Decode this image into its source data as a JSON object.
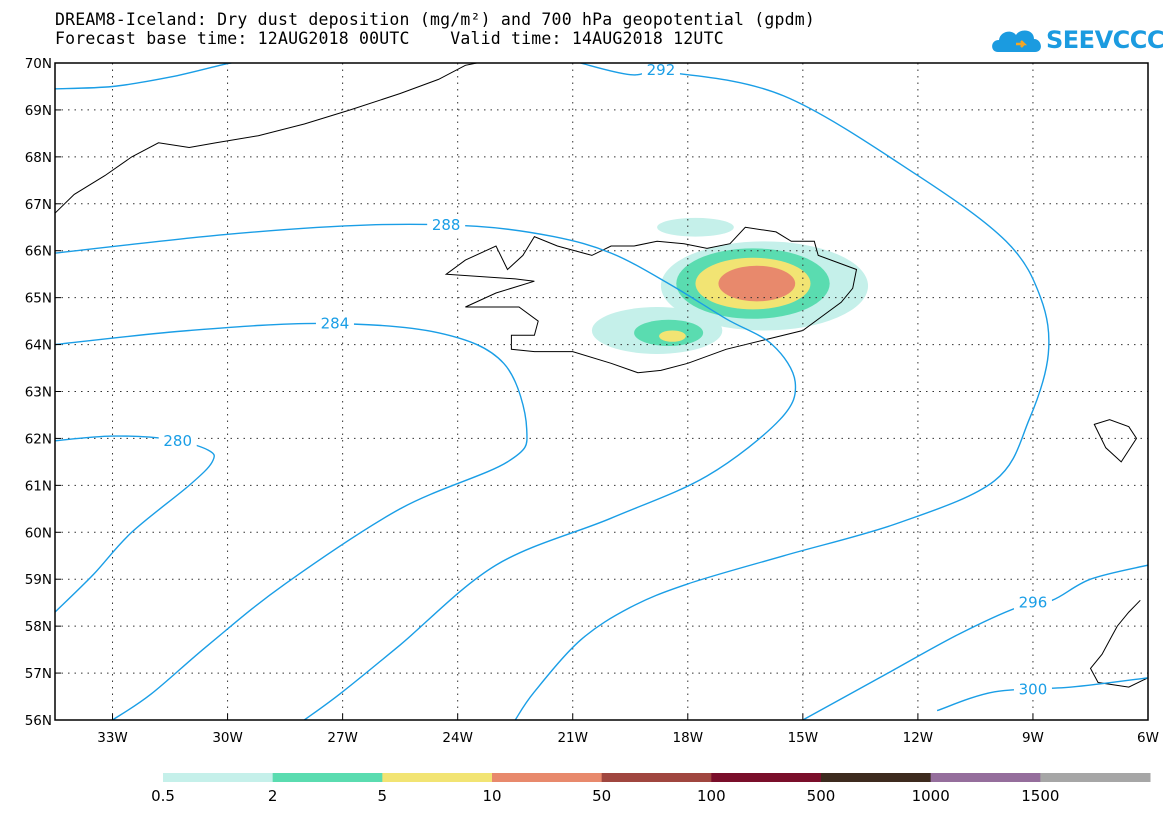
{
  "header": {
    "title_line1": "DREAM8-Iceland: Dry dust deposition (mg/m²) and 700 hPa geopotential (gpdm)",
    "title_line2": "Forecast base time: 12AUG2018 00UTC    Valid time: 14AUG2018 12UTC"
  },
  "logo": {
    "text": "SEEVCCC",
    "color": "#1b9be0"
  },
  "map": {
    "lon_range": [
      -34.5,
      -6
    ],
    "lat_range": [
      56,
      70
    ],
    "lon_ticks": [
      {
        "value": -33,
        "label": "33W"
      },
      {
        "value": -30,
        "label": "30W"
      },
      {
        "value": -27,
        "label": "27W"
      },
      {
        "value": -24,
        "label": "24W"
      },
      {
        "value": -21,
        "label": "21W"
      },
      {
        "value": -18,
        "label": "18W"
      },
      {
        "value": -15,
        "label": "15W"
      },
      {
        "value": -12,
        "label": "12W"
      },
      {
        "value": -9,
        "label": "9W"
      },
      {
        "value": -6,
        "label": "6W"
      }
    ],
    "lat_ticks": [
      {
        "value": 56,
        "label": "56N"
      },
      {
        "value": 57,
        "label": "57N"
      },
      {
        "value": 58,
        "label": "58N"
      },
      {
        "value": 59,
        "label": "59N"
      },
      {
        "value": 60,
        "label": "60N"
      },
      {
        "value": 61,
        "label": "61N"
      },
      {
        "value": 62,
        "label": "62N"
      },
      {
        "value": 63,
        "label": "63N"
      },
      {
        "value": 64,
        "label": "64N"
      },
      {
        "value": 65,
        "label": "65N"
      },
      {
        "value": 66,
        "label": "66N"
      },
      {
        "value": 67,
        "label": "67N"
      },
      {
        "value": 68,
        "label": "68N"
      },
      {
        "value": 69,
        "label": "69N"
      },
      {
        "value": 70,
        "label": "70N"
      }
    ],
    "grid": "dotted",
    "contour_color": "#1a9ee6",
    "contours": [
      {
        "value": 280,
        "label": "280",
        "label_at": [
          -31.3,
          61.95
        ],
        "points": [
          [
            -34.5,
            61.95
          ],
          [
            -33,
            62.05
          ],
          [
            -31.5,
            61.98
          ],
          [
            -30.5,
            61.75
          ],
          [
            -30.4,
            61.5
          ],
          [
            -31,
            61.0
          ],
          [
            -32.5,
            60.0
          ],
          [
            -33.5,
            59.1
          ],
          [
            -34.5,
            58.3
          ]
        ]
      },
      {
        "value": 284,
        "label": "284",
        "label_at": [
          -27.2,
          64.45
        ],
        "points": [
          [
            -34.5,
            64.0
          ],
          [
            -31,
            64.3
          ],
          [
            -27.5,
            64.45
          ],
          [
            -24.5,
            64.25
          ],
          [
            -22.8,
            63.6
          ],
          [
            -22.2,
            62.2
          ],
          [
            -22.7,
            61.5
          ],
          [
            -25.5,
            60.5
          ],
          [
            -28.5,
            58.9
          ],
          [
            -30.5,
            57.6
          ],
          [
            -32,
            56.55
          ],
          [
            -33,
            56.0
          ]
        ]
      },
      {
        "value": 288,
        "label": "288",
        "label_at": [
          -24.3,
          66.55
        ],
        "points": [
          [
            -34.5,
            65.95
          ],
          [
            -30,
            66.35
          ],
          [
            -26.3,
            66.55
          ],
          [
            -23.5,
            66.52
          ],
          [
            -21.5,
            66.3
          ],
          [
            -20,
            65.95
          ],
          [
            -18.5,
            65.3
          ],
          [
            -17,
            64.55
          ],
          [
            -15.8,
            64.0
          ],
          [
            -15.2,
            63.2
          ],
          [
            -15.6,
            62.4
          ],
          [
            -17.5,
            61.2
          ],
          [
            -20,
            60.3
          ],
          [
            -23,
            59.3
          ],
          [
            -25.5,
            57.6
          ],
          [
            -27,
            56.6
          ],
          [
            -28,
            56.0
          ]
        ]
      },
      {
        "value": 292,
        "label": "292",
        "label_at": [
          -18.7,
          69.85
        ],
        "points": [
          [
            -34.5,
            69.45
          ],
          [
            -33,
            69.5
          ],
          [
            -31.5,
            69.7
          ],
          [
            -30.2,
            69.95
          ],
          [
            -29.9,
            70
          ]
        ],
        "points2": [
          [
            -20.8,
            70
          ],
          [
            -19.5,
            69.75
          ],
          [
            -18.5,
            69.8
          ],
          [
            -15.5,
            69.3
          ],
          [
            -12,
            67.6
          ],
          [
            -9.7,
            66.2
          ],
          [
            -8.8,
            65
          ],
          [
            -8.6,
            63.8
          ],
          [
            -9.1,
            62.4
          ],
          [
            -10,
            61.1
          ],
          [
            -12.5,
            60.2
          ],
          [
            -15.5,
            59.5
          ],
          [
            -18,
            58.9
          ],
          [
            -19.5,
            58.4
          ],
          [
            -20.8,
            57.7
          ],
          [
            -22,
            56.6
          ],
          [
            -22.5,
            56.0
          ]
        ]
      },
      {
        "value": 296,
        "label": "296",
        "label_at": [
          -9.0,
          58.5
        ],
        "points": [
          [
            -15,
            56.0
          ],
          [
            -13,
            56.9
          ],
          [
            -11,
            57.8
          ],
          [
            -9.4,
            58.4
          ],
          [
            -8.5,
            58.55
          ],
          [
            -7.5,
            59.0
          ],
          [
            -6,
            59.3
          ]
        ]
      },
      {
        "value": 300,
        "label": "300",
        "label_at": [
          -9.0,
          56.65
        ],
        "points": [
          [
            -11.5,
            56.2
          ],
          [
            -10,
            56.6
          ],
          [
            -8,
            56.7
          ],
          [
            -6,
            56.9
          ]
        ]
      }
    ]
  },
  "dust_deposition": {
    "units": "mg/m²",
    "areas": [
      {
        "level": "0.5",
        "color": "#c5f0ea",
        "center": [
          -16.0,
          65.25
        ],
        "radii": [
          2.7,
          0.95
        ]
      },
      {
        "level": "0.5",
        "color": "#c5f0ea",
        "center": [
          -18.8,
          64.3
        ],
        "radii": [
          1.7,
          0.5
        ]
      },
      {
        "level": "0.5",
        "color": "#c5f0ea",
        "center": [
          -17.8,
          66.5
        ],
        "radii": [
          1.0,
          0.2
        ]
      },
      {
        "level": "2",
        "color": "#5adcb0",
        "center": [
          -16.3,
          65.3
        ],
        "radii": [
          2.0,
          0.75
        ]
      },
      {
        "level": "2",
        "color": "#5adcb0",
        "center": [
          -18.5,
          64.25
        ],
        "radii": [
          0.9,
          0.28
        ]
      },
      {
        "level": "5",
        "color": "#f2e473",
        "center": [
          -16.3,
          65.3
        ],
        "radii": [
          1.5,
          0.55
        ]
      },
      {
        "level": "5",
        "color": "#f2e473",
        "center": [
          -18.4,
          64.18
        ],
        "radii": [
          0.35,
          0.12
        ]
      },
      {
        "level": "10",
        "color": "#e8896c",
        "center": [
          -16.2,
          65.3
        ],
        "radii": [
          1.0,
          0.38
        ]
      }
    ]
  },
  "legend": {
    "colors": [
      "#c5f0ea",
      "#5adcb0",
      "#f2e473",
      "#e8896c",
      "#a0463f",
      "#7a0e2a",
      "#3d2a1e",
      "#956e9c",
      "#a6a6a6"
    ],
    "labels": [
      "0.5",
      "2",
      "5",
      "10",
      "50",
      "100",
      "500",
      "1000",
      "1500"
    ]
  },
  "coastlines": {
    "iceland": [
      [
        -22.7,
        65.6
      ],
      [
        -22.3,
        65.9
      ],
      [
        -22.0,
        66.3
      ],
      [
        -21.4,
        66.1
      ],
      [
        -20.5,
        65.9
      ],
      [
        -20.0,
        66.1
      ],
      [
        -19.4,
        66.1
      ],
      [
        -18.8,
        66.2
      ],
      [
        -18.1,
        66.15
      ],
      [
        -17.5,
        66.05
      ],
      [
        -16.9,
        66.15
      ],
      [
        -16.5,
        66.5
      ],
      [
        -15.7,
        66.4
      ],
      [
        -15.3,
        66.2
      ],
      [
        -14.7,
        66.2
      ],
      [
        -14.6,
        65.9
      ],
      [
        -13.6,
        65.6
      ],
      [
        -13.7,
        65.2
      ],
      [
        -14.0,
        64.9
      ],
      [
        -14.5,
        64.6
      ],
      [
        -15.0,
        64.3
      ],
      [
        -16.0,
        64.1
      ],
      [
        -17.0,
        63.9
      ],
      [
        -18.0,
        63.6
      ],
      [
        -18.7,
        63.45
      ],
      [
        -19.3,
        63.4
      ],
      [
        -20.0,
        63.6
      ],
      [
        -21.0,
        63.85
      ],
      [
        -22.0,
        63.85
      ],
      [
        -22.6,
        63.9
      ],
      [
        -22.6,
        64.2
      ],
      [
        -22.0,
        64.2
      ],
      [
        -21.9,
        64.5
      ],
      [
        -22.4,
        64.8
      ],
      [
        -23.8,
        64.8
      ],
      [
        -23.0,
        65.1
      ],
      [
        -22.0,
        65.35
      ],
      [
        -22.5,
        65.4
      ],
      [
        -24.3,
        65.5
      ],
      [
        -23.8,
        65.8
      ],
      [
        -23.0,
        66.1
      ],
      [
        -22.7,
        65.6
      ]
    ],
    "greenland": [
      [
        -34.5,
        66.8
      ],
      [
        -34.0,
        67.2
      ],
      [
        -33.2,
        67.6
      ],
      [
        -32.5,
        68.0
      ],
      [
        -31.8,
        68.3
      ],
      [
        -31.0,
        68.2
      ],
      [
        -30.3,
        68.3
      ],
      [
        -29.2,
        68.45
      ],
      [
        -28.0,
        68.7
      ],
      [
        -26.8,
        69.0
      ],
      [
        -25.5,
        69.35
      ],
      [
        -24.5,
        69.65
      ],
      [
        -23.8,
        69.95
      ],
      [
        -23.5,
        70
      ]
    ],
    "scotland": [
      [
        -6.2,
        58.55
      ],
      [
        -6.5,
        58.3
      ],
      [
        -6.8,
        58.0
      ],
      [
        -7.0,
        57.7
      ],
      [
        -7.2,
        57.4
      ],
      [
        -7.5,
        57.1
      ],
      [
        -7.3,
        56.8
      ],
      [
        -6.5,
        56.7
      ],
      [
        -6,
        56.9
      ]
    ],
    "faroe": [
      [
        -7.4,
        62.3
      ],
      [
        -7.0,
        62.4
      ],
      [
        -6.5,
        62.25
      ],
      [
        -6.3,
        62.0
      ],
      [
        -6.7,
        61.5
      ],
      [
        -7.1,
        61.8
      ],
      [
        -7.4,
        62.3
      ]
    ]
  }
}
